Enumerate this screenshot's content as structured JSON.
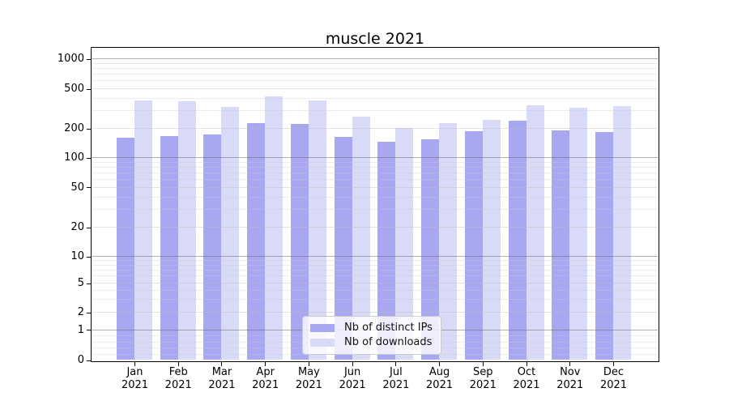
{
  "title": "muscle 2021",
  "chart_data": {
    "type": "bar",
    "title": "muscle 2021",
    "xlabel": "",
    "ylabel": "",
    "yscale": "log-like (asinh), linear below 1",
    "grid": true,
    "legend_position": "lower center",
    "months": [
      "Jan",
      "Feb",
      "Mar",
      "Apr",
      "May",
      "Jun",
      "Jul",
      "Aug",
      "Sep",
      "Oct",
      "Nov",
      "Dec"
    ],
    "year": "2021",
    "y_ticks": [
      1000,
      500,
      200,
      100,
      50,
      20,
      10,
      5,
      2,
      1,
      0
    ],
    "y_minor_gridlines": [
      900,
      800,
      700,
      600,
      400,
      300,
      90,
      80,
      70,
      60,
      40,
      30,
      9,
      8,
      7,
      6,
      4,
      3,
      0.8,
      0.6,
      0.4,
      0.2
    ],
    "series": [
      {
        "name": "Nb of distinct IPs",
        "color": "#a7a7f2",
        "values": [
          160,
          167,
          173,
          226,
          220,
          163,
          146,
          154,
          187,
          239,
          190,
          184
        ]
      },
      {
        "name": "Nb of downloads",
        "color": "#d9d9f8",
        "values": [
          379,
          375,
          330,
          420,
          379,
          264,
          203,
          224,
          244,
          342,
          322,
          332
        ]
      }
    ]
  }
}
